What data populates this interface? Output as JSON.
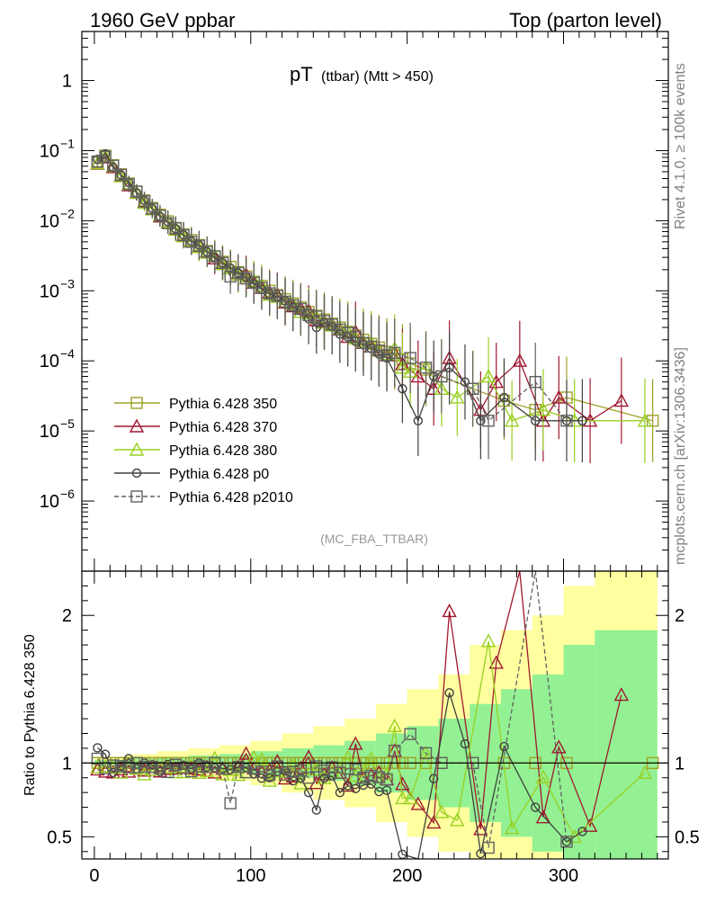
{
  "header": {
    "left": "1960 GeV ppbar",
    "right": "Top (parton level)"
  },
  "side_labels": {
    "rivet": "Rivet 4.1.0, ≥ 100k events",
    "mcplots": "mcplots.cern.ch [arXiv:1306.3436]"
  },
  "chart_data": {
    "type": "line",
    "title_main": "pT",
    "title_sub": "(ttbar) (Mtt > 450)",
    "analysis_tag": "(MC_FBA_TTBAR)",
    "xlabel": "",
    "ylabel_ratio": "Ratio to Pythia 6.428 350",
    "xlim": [
      -8,
      367
    ],
    "ylim_main_log10": [
      -7,
      0.7
    ],
    "ylim_ratio": [
      0.35,
      2.3
    ],
    "x_ticks": [
      "0",
      "100",
      "200",
      "300"
    ],
    "y_ticks_main": [
      "10^-6",
      "10^-5",
      "10^-4",
      "10^-3",
      "10^-2",
      "10^-1",
      "1"
    ],
    "y_ticks_ratio": [
      "0.5",
      "1",
      "2"
    ],
    "series": [
      {
        "name": "Pythia 6.428 350",
        "color": "#a0a028",
        "marker": "square",
        "dashed": false,
        "x": [
          2,
          7,
          12,
          17,
          22,
          27,
          32,
          37,
          42,
          47,
          52,
          57,
          62,
          67,
          72,
          77,
          82,
          87,
          92,
          97,
          102,
          107,
          112,
          117,
          122,
          127,
          132,
          137,
          142,
          147,
          152,
          157,
          162,
          167,
          172,
          177,
          182,
          187,
          192,
          197,
          202,
          212,
          222,
          242,
          262,
          282,
          302,
          357
        ],
        "y": [
          0.068,
          0.085,
          0.062,
          0.046,
          0.034,
          0.026,
          0.0195,
          0.0152,
          0.0122,
          0.0098,
          0.0079,
          0.0064,
          0.0053,
          0.0045,
          0.0037,
          0.0031,
          0.0026,
          0.0022,
          0.00185,
          0.0016,
          0.00135,
          0.00117,
          0.001,
          0.00087,
          0.00076,
          0.00066,
          0.00058,
          0.0005,
          0.00044,
          0.00039,
          0.00034,
          0.0003,
          0.00026,
          0.00023,
          0.0002,
          0.000175,
          0.000155,
          0.000135,
          0.00012,
          0.000105,
          9.2e-05,
          7.5e-05,
          6e-05,
          4e-05,
          2.7e-05,
          2e-05,
          3e-05,
          1.4e-05
        ]
      },
      {
        "name": "Pythia 6.428 370",
        "color": "#a01830",
        "marker": "triangle",
        "dashed": false,
        "x": [
          2,
          7,
          12,
          17,
          22,
          27,
          32,
          37,
          42,
          47,
          52,
          57,
          62,
          67,
          72,
          77,
          82,
          87,
          92,
          97,
          102,
          107,
          112,
          117,
          122,
          127,
          132,
          137,
          142,
          147,
          152,
          157,
          162,
          167,
          172,
          177,
          182,
          187,
          192,
          197,
          207,
          217,
          227,
          247,
          257,
          272,
          287,
          297,
          317,
          337
        ],
        "y": [
          0.065,
          0.08,
          0.058,
          0.044,
          0.032,
          0.025,
          0.0185,
          0.0148,
          0.0115,
          0.0094,
          0.0076,
          0.0062,
          0.0051,
          0.0043,
          0.0036,
          0.0029,
          0.0025,
          0.0021,
          0.0018,
          0.0017,
          0.0013,
          0.0011,
          0.00095,
          0.00088,
          0.00068,
          0.0006,
          0.00056,
          0.00052,
          0.00038,
          0.00036,
          0.00033,
          0.00028,
          0.00022,
          0.00026,
          0.00018,
          0.00016,
          0.000145,
          0.00012,
          0.00013,
          9e-05,
          6e-05,
          4e-05,
          0.00011,
          2e-05,
          5e-05,
          0.0001,
          1.4e-05,
          3e-05,
          1.4e-05,
          2.7e-05
        ]
      },
      {
        "name": "Pythia 6.428 380",
        "color": "#98d020",
        "marker": "triangle",
        "dashed": false,
        "x": [
          2,
          7,
          12,
          17,
          22,
          27,
          32,
          37,
          42,
          47,
          52,
          57,
          62,
          67,
          72,
          77,
          82,
          87,
          92,
          97,
          102,
          107,
          112,
          117,
          122,
          127,
          132,
          137,
          142,
          147,
          152,
          157,
          162,
          167,
          172,
          177,
          182,
          187,
          192,
          197,
          202,
          212,
          222,
          232,
          252,
          267,
          287,
          307,
          352
        ],
        "y": [
          0.066,
          0.083,
          0.06,
          0.043,
          0.033,
          0.025,
          0.018,
          0.0145,
          0.0118,
          0.0095,
          0.0074,
          0.006,
          0.0052,
          0.0042,
          0.0035,
          0.0032,
          0.0024,
          0.0021,
          0.0017,
          0.0015,
          0.0014,
          0.0012,
          0.00088,
          0.00082,
          0.0007,
          0.00065,
          0.0005,
          0.00048,
          0.00042,
          0.00035,
          0.00032,
          0.00029,
          0.00027,
          0.00021,
          0.00019,
          0.00018,
          0.00014,
          0.000125,
          0.00015,
          8e-05,
          7e-05,
          8e-05,
          4e-05,
          3e-05,
          6e-05,
          1.4e-05,
          2e-05,
          1.4e-05,
          1.4e-05
        ]
      },
      {
        "name": "Pythia 6.428 p0",
        "color": "#404040",
        "marker": "circle",
        "dashed": false,
        "x": [
          2,
          7,
          12,
          17,
          22,
          27,
          32,
          37,
          42,
          47,
          52,
          57,
          62,
          67,
          72,
          77,
          82,
          87,
          92,
          97,
          102,
          107,
          112,
          117,
          122,
          127,
          132,
          137,
          142,
          147,
          152,
          157,
          162,
          167,
          172,
          177,
          182,
          187,
          197,
          207,
          217,
          227,
          237,
          247,
          262,
          282,
          302,
          312
        ],
        "y": [
          0.075,
          0.09,
          0.058,
          0.045,
          0.035,
          0.025,
          0.0195,
          0.015,
          0.0115,
          0.0097,
          0.0077,
          0.0063,
          0.0051,
          0.0045,
          0.0036,
          0.003,
          0.0025,
          0.0021,
          0.0018,
          0.00155,
          0.00125,
          0.00105,
          0.0009,
          0.00082,
          0.00072,
          0.00058,
          0.00052,
          0.0004,
          0.0003,
          0.00035,
          0.00031,
          0.00024,
          0.00022,
          0.00019,
          0.00017,
          0.00015,
          0.000125,
          0.00011,
          4e-05,
          1.4e-05,
          6e-05,
          8e-05,
          5e-05,
          1.4e-05,
          3e-05,
          1.4e-05,
          1.4e-05,
          1.4e-05
        ]
      },
      {
        "name": "Pythia 6.428 p2010",
        "color": "#606060",
        "marker": "square",
        "dashed": true,
        "x": [
          2,
          7,
          12,
          17,
          22,
          27,
          32,
          37,
          42,
          47,
          52,
          57,
          62,
          67,
          72,
          77,
          82,
          87,
          92,
          97,
          102,
          107,
          112,
          117,
          122,
          127,
          132,
          137,
          142,
          147,
          152,
          157,
          162,
          167,
          172,
          177,
          182,
          187,
          192,
          202,
          212,
          222,
          242,
          252,
          282,
          302
        ],
        "y": [
          0.07,
          0.082,
          0.061,
          0.045,
          0.033,
          0.026,
          0.019,
          0.0148,
          0.0118,
          0.0092,
          0.0078,
          0.0062,
          0.005,
          0.0044,
          0.0036,
          0.0031,
          0.0025,
          0.0016,
          0.0018,
          0.0015,
          0.0013,
          0.0011,
          0.00092,
          0.00085,
          0.0007,
          0.00062,
          0.00055,
          0.00045,
          0.00043,
          0.00037,
          0.00033,
          0.00028,
          0.00025,
          0.00022,
          0.00018,
          0.00016,
          0.00014,
          0.00012,
          0.00013,
          0.00011,
          8e-05,
          6e-05,
          4e-05,
          1.4e-05,
          5e-05,
          1.4e-05
        ]
      }
    ],
    "ratio_band": {
      "x_edges": [
        0,
        20,
        40,
        60,
        80,
        100,
        120,
        140,
        160,
        180,
        200,
        220,
        240,
        260,
        280,
        300,
        320,
        360
      ],
      "inner_halfwidth": [
        0.02,
        0.03,
        0.04,
        0.05,
        0.06,
        0.08,
        0.1,
        0.12,
        0.15,
        0.2,
        0.25,
        0.3,
        0.4,
        0.5,
        0.6,
        0.8,
        0.9
      ],
      "outer_halfwidth": [
        0.04,
        0.06,
        0.08,
        0.1,
        0.12,
        0.15,
        0.2,
        0.25,
        0.3,
        0.4,
        0.5,
        0.6,
        0.8,
        0.9,
        1.0,
        1.2,
        1.3
      ]
    }
  }
}
